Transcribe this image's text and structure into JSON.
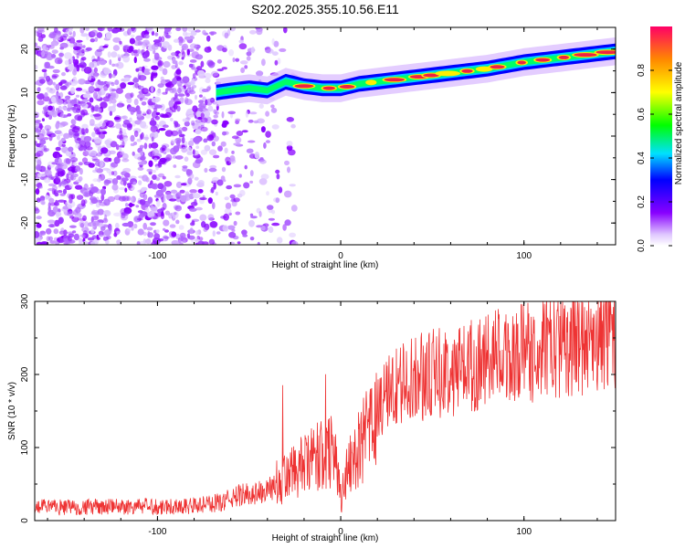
{
  "title": "S202.2025.355.10.56.E11",
  "chart_data": [
    {
      "type": "heatmap",
      "name": "spectrogram",
      "xlabel": "Height of straight line (km)",
      "ylabel": "Frequency (Hz)",
      "xlim": [
        -167,
        150
      ],
      "ylim": [
        -25,
        25
      ],
      "xticks": [
        -100,
        0,
        100
      ],
      "yticks": [
        -20,
        -10,
        0,
        10,
        20
      ],
      "ridge": {
        "description_points_x": [
          -68,
          -60,
          -50,
          -40,
          -30,
          -20,
          -10,
          0,
          10,
          20,
          40,
          60,
          80,
          100,
          120,
          140,
          150
        ],
        "frequency_hz": [
          10,
          10.5,
          11,
          10.5,
          12.5,
          11.5,
          11,
          11,
          12,
          12.5,
          13.5,
          14.5,
          15.5,
          17,
          18,
          19,
          19.5
        ]
      },
      "noise_region_x": [
        -167,
        -25
      ],
      "colorbar": {
        "label": "Normalized spectral amplitude",
        "range": [
          0,
          1
        ],
        "ticks": [
          "0.0",
          "0.2",
          "0.4",
          "0.6",
          "0.8"
        ]
      }
    },
    {
      "type": "line",
      "name": "snr",
      "xlabel": "Height of straight line (km)",
      "ylabel": "SNR (10 * v/v)",
      "xlim": [
        -167,
        150
      ],
      "ylim": [
        0,
        300
      ],
      "xticks": [
        -100,
        0,
        100
      ],
      "yticks": [
        0,
        100,
        200,
        300
      ],
      "color": "#ee3333",
      "trend": {
        "x": [
          -167,
          -80,
          -65,
          -55,
          -40,
          -30,
          -20,
          -10,
          -3,
          0,
          5,
          15,
          25,
          40,
          60,
          80,
          100,
          120,
          150
        ],
        "y": [
          18,
          20,
          25,
          35,
          40,
          60,
          75,
          90,
          100,
          30,
          80,
          120,
          175,
          195,
          205,
          220,
          230,
          240,
          255
        ]
      }
    }
  ]
}
